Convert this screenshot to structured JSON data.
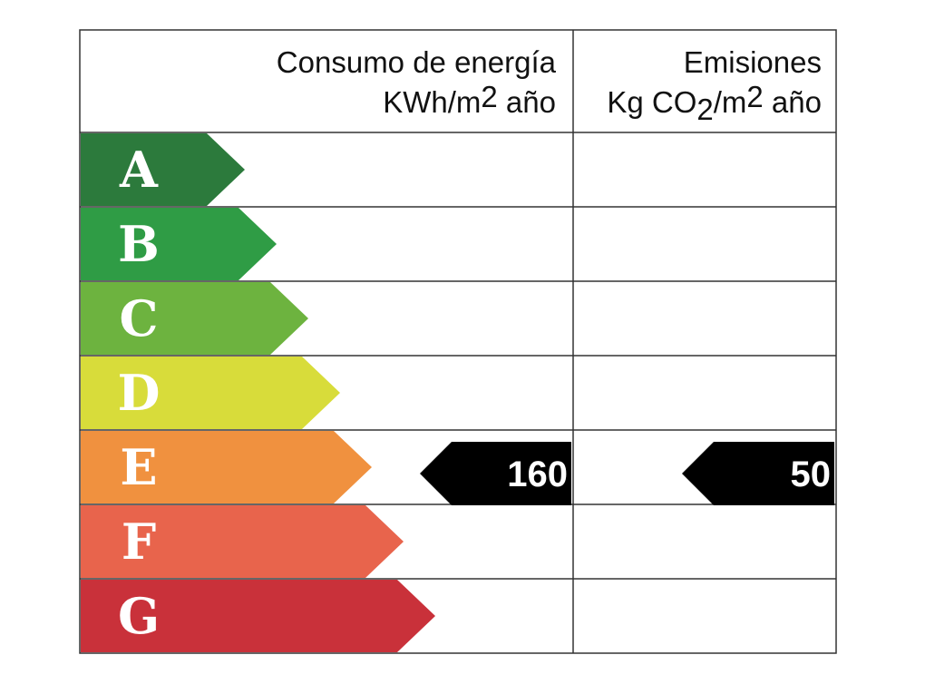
{
  "header": {
    "energy": {
      "title": "Consumo de energía",
      "unit": [
        "KWh/m",
        "2",
        " año"
      ]
    },
    "emissions": {
      "title": "Emisiones",
      "unit": [
        "Kg CO",
        "2",
        "/m",
        "2",
        " año"
      ]
    }
  },
  "rows": [
    "A",
    "B",
    "C",
    "D",
    "E",
    "F",
    "G"
  ],
  "energy_value": "160",
  "emissions_value": "50"
}
